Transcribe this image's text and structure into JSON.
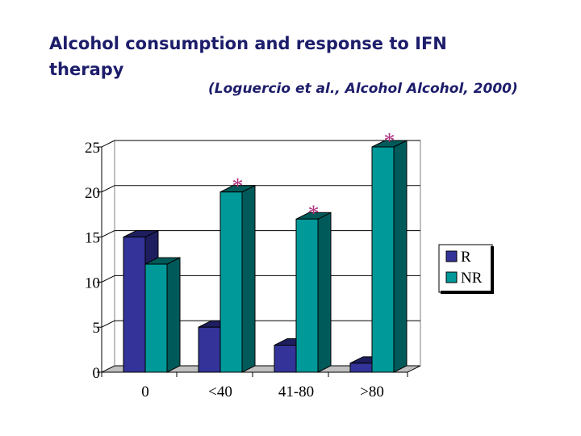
{
  "slide": {
    "title": "Alcohol consumption and response to IFN therapy",
    "citation": "(Loguercio et al., Alcohol Alcohol, 2000)"
  },
  "colors": {
    "R": "#333399",
    "R_dark": "#1e1e5e",
    "NR": "#009999",
    "NR_dark": "#005a5a",
    "floor": "#c0c0c0",
    "star": "#b0307d"
  },
  "chart_data": {
    "type": "bar",
    "style": "3d-clustered-column",
    "categories": [
      "0",
      "<40",
      "41-80",
      ">80"
    ],
    "series": [
      {
        "name": "R",
        "values": [
          15,
          5,
          3,
          1
        ]
      },
      {
        "name": "NR",
        "values": [
          12,
          20,
          17,
          25
        ]
      }
    ],
    "ylim": [
      0,
      25
    ],
    "yticks": [
      "0",
      "5",
      "10",
      "15",
      "20",
      "25"
    ],
    "gridlines": true,
    "legend_position": "right",
    "annotations": [
      {
        "text": "*",
        "category": "<40",
        "series": "NR"
      },
      {
        "text": "*",
        "category": "41-80",
        "series": "NR"
      },
      {
        "text": "*",
        "category": ">80",
        "series": "NR"
      }
    ],
    "title": "",
    "xlabel": "",
    "ylabel": ""
  }
}
